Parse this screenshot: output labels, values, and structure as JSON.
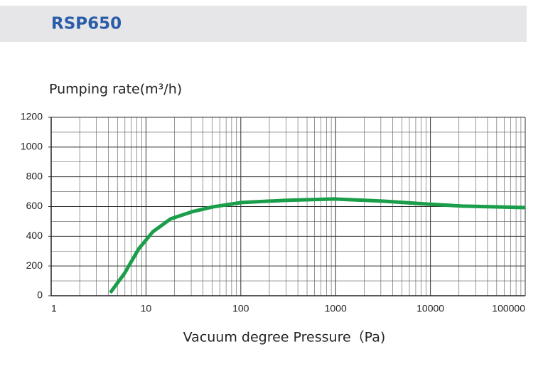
{
  "chart_data": {
    "type": "line",
    "title": "RSP650",
    "ylabel": "Pumping rate(m³/h)",
    "xlabel": "Vacuum degree Pressure（Pa)",
    "xscale": "log",
    "grid": true,
    "xlim": [
      1,
      100000
    ],
    "xticks": [
      1,
      10,
      100,
      1000,
      10000,
      100000
    ],
    "ylim": [
      0,
      1200
    ],
    "yticks": [
      0,
      200,
      400,
      600,
      800,
      1000,
      1200
    ],
    "series": [
      {
        "name": "RSP650",
        "color": "#1a9e4a",
        "x": [
          4.2,
          5.9,
          8.4,
          11.8,
          18.2,
          30.6,
          51,
          102,
          288,
          966,
          3240,
          9120,
          21800,
          100000
        ],
        "values": [
          20,
          148,
          316,
          430,
          517,
          565,
          598,
          627,
          641,
          651,
          636,
          617,
          603,
          593
        ]
      }
    ]
  }
}
